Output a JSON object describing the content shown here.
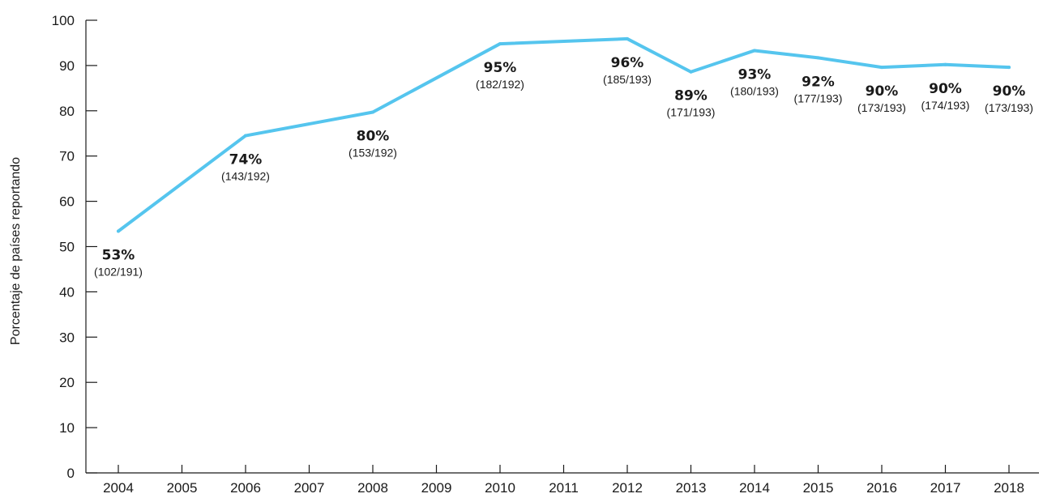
{
  "chart_data": {
    "type": "line",
    "title": "",
    "xlabel": "",
    "ylabel": "Porcentaje de países reportando",
    "ylim": [
      0,
      100
    ],
    "yticks": [
      0,
      10,
      20,
      30,
      40,
      50,
      60,
      70,
      80,
      90,
      100
    ],
    "x": [
      "2004",
      "2005",
      "2006",
      "2007",
      "2008",
      "2009",
      "2010",
      "2011",
      "2012",
      "2013",
      "2014",
      "2015",
      "2016",
      "2017",
      "2018"
    ],
    "series": [
      {
        "color": "#55c5ee",
        "points": [
          {
            "x": "2004",
            "y": 53.4,
            "pct": "53%",
            "count": "(102/191)"
          },
          {
            "x": "2006",
            "y": 74.5,
            "pct": "74%",
            "count": "(143/192)"
          },
          {
            "x": "2008",
            "y": 79.7,
            "pct": "80%",
            "count": "(153/192)"
          },
          {
            "x": "2010",
            "y": 94.8,
            "pct": "95%",
            "count": "(182/192)"
          },
          {
            "x": "2012",
            "y": 95.9,
            "pct": "96%",
            "count": "(185/193)"
          },
          {
            "x": "2013",
            "y": 88.6,
            "pct": "89%",
            "count": "(171/193)"
          },
          {
            "x": "2014",
            "y": 93.3,
            "pct": "93%",
            "count": "(180/193)"
          },
          {
            "x": "2015",
            "y": 91.7,
            "pct": "92%",
            "count": "(177/193)"
          },
          {
            "x": "2016",
            "y": 89.6,
            "pct": "90%",
            "count": "(173/193)"
          },
          {
            "x": "2017",
            "y": 90.2,
            "pct": "90%",
            "count": "(174/193)"
          },
          {
            "x": "2018",
            "y": 89.6,
            "pct": "90%",
            "count": "(173/193)"
          }
        ]
      }
    ],
    "grid": false,
    "legend": "none"
  }
}
